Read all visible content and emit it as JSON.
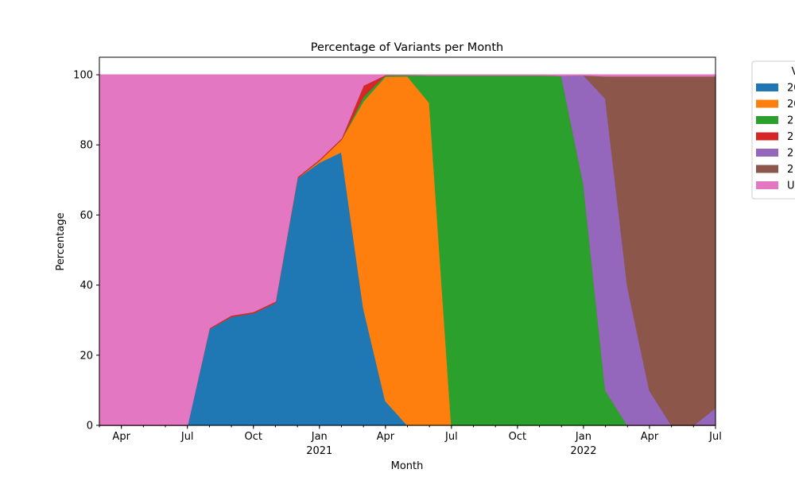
{
  "chart_data": {
    "type": "area",
    "stacked": true,
    "title": "Percentage of Variants per Month",
    "xlabel": "Month",
    "ylabel": "Percentage",
    "xlim": [
      "2020-03",
      "2022-07"
    ],
    "ylim": [
      0,
      105
    ],
    "grid": false,
    "legend_placement": "outside-right",
    "legend_title": "V",
    "x": [
      "2020-03",
      "2020-04",
      "2020-05",
      "2020-06",
      "2020-07",
      "2020-08",
      "2020-09",
      "2020-10",
      "2020-11",
      "2020-12",
      "2021-01",
      "2021-02",
      "2021-03",
      "2021-04",
      "2021-05",
      "2021-06",
      "2021-07",
      "2021-08",
      "2021-09",
      "2021-10",
      "2021-11",
      "2021-12",
      "2022-01",
      "2022-02",
      "2022-03",
      "2022-04",
      "2022-05",
      "2022-06",
      "2022-07"
    ],
    "series": [
      {
        "name": "20",
        "color": "#1f77b4",
        "values": [
          0,
          0,
          0,
          0,
          0,
          27.5,
          31,
          32,
          35,
          70.5,
          75,
          78,
          33.5,
          7,
          0,
          0,
          0,
          0,
          0,
          0,
          0,
          0,
          0,
          0,
          0,
          0,
          0,
          0,
          0
        ]
      },
      {
        "name": "20",
        "color": "#ff7f0e",
        "values": [
          0,
          0,
          0,
          0,
          0,
          0,
          0,
          0,
          0,
          0,
          0.5,
          3.5,
          59,
          92.5,
          99.6,
          92,
          0,
          0,
          0,
          0,
          0,
          0,
          0,
          0,
          0,
          0,
          0,
          0,
          0
        ]
      },
      {
        "name": "2",
        "color": "#2ca02c",
        "values": [
          0,
          0,
          0,
          0,
          0,
          0,
          0,
          0,
          0,
          0,
          0,
          0,
          1.3,
          0.4,
          0.4,
          7.9,
          99.9,
          99.9,
          99.9,
          99.9,
          99.9,
          99.7,
          69,
          10,
          0,
          0,
          0,
          0,
          0
        ]
      },
      {
        "name": "2",
        "color": "#d62728",
        "values": [
          0,
          0,
          0,
          0,
          0,
          0.3,
          0.4,
          0.4,
          0.4,
          0.4,
          0.4,
          0.4,
          3.2,
          0.1,
          0,
          0,
          0,
          0,
          0,
          0,
          0,
          0,
          0,
          0,
          0,
          0,
          0,
          0,
          0
        ]
      },
      {
        "name": "2",
        "color": "#9467bd",
        "values": [
          0,
          0,
          0,
          0,
          0,
          0,
          0,
          0,
          0,
          0,
          0,
          0,
          0,
          0,
          0,
          0,
          0,
          0,
          0,
          0,
          0,
          0.1,
          30.9,
          83.2,
          39.6,
          10,
          0,
          0,
          5
        ]
      },
      {
        "name": "2",
        "color": "#8c564b",
        "values": [
          0,
          0,
          0,
          0,
          0,
          0,
          0,
          0,
          0,
          0,
          0,
          0,
          0,
          0,
          0,
          0,
          0,
          0,
          0,
          0,
          0,
          0,
          0,
          6.4,
          60,
          89.6,
          99.6,
          99.6,
          94.6
        ]
      },
      {
        "name": "U",
        "color": "#e377c2",
        "values": [
          100,
          100,
          100,
          100,
          100,
          72.2,
          68.6,
          67.6,
          64.6,
          29.1,
          24.1,
          18.1,
          3,
          0,
          0,
          0.1,
          0.1,
          0.1,
          0.1,
          0.1,
          0.1,
          0.2,
          0.1,
          0.4,
          0.4,
          0.4,
          0.4,
          0.4,
          0.4
        ]
      }
    ],
    "y_ticks": [
      "0",
      "20",
      "40",
      "60",
      "80",
      "100"
    ],
    "x_ticks": [
      {
        "date": "2020-04",
        "label": "Apr",
        "sublabel": ""
      },
      {
        "date": "2020-07",
        "label": "Jul",
        "sublabel": ""
      },
      {
        "date": "2020-10",
        "label": "Oct",
        "sublabel": ""
      },
      {
        "date": "2021-01",
        "label": "Jan",
        "sublabel": "2021"
      },
      {
        "date": "2021-04",
        "label": "Apr",
        "sublabel": ""
      },
      {
        "date": "2021-07",
        "label": "Jul",
        "sublabel": ""
      },
      {
        "date": "2021-10",
        "label": "Oct",
        "sublabel": ""
      },
      {
        "date": "2022-01",
        "label": "Jan",
        "sublabel": "2022"
      },
      {
        "date": "2022-04",
        "label": "Apr",
        "sublabel": ""
      },
      {
        "date": "2022-07",
        "label": "Jul",
        "sublabel": ""
      }
    ]
  }
}
